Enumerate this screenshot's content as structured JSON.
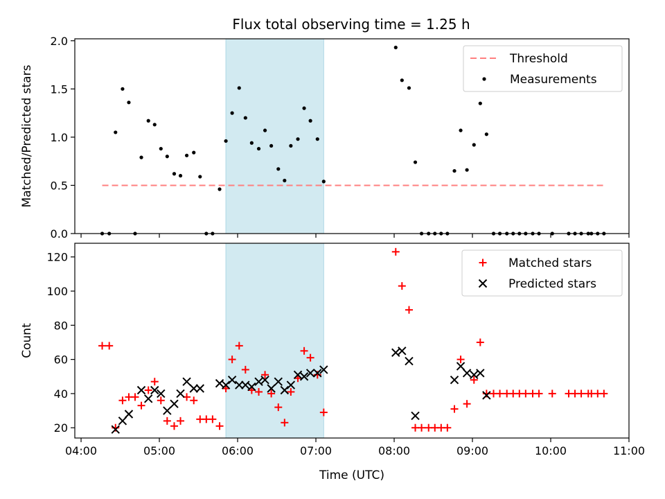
{
  "figure": {
    "title": "Flux total observing time = 1.25 h"
  },
  "colors": {
    "threshold": "#ff7f7f",
    "shade": "#add8e6",
    "measurement": "#000000",
    "matched": "#ff0000",
    "predicted": "#000000"
  },
  "chart_data": [
    {
      "type": "scatter",
      "ylabel": "Matched/Predicted stars",
      "xlim": [
        3.92,
        11.0
      ],
      "ylim": [
        0,
        2.02
      ],
      "yticks": [
        {
          "v": 0,
          "label": "0.0"
        },
        {
          "v": 0.5,
          "label": "0.5"
        },
        {
          "v": 1.0,
          "label": "1.0"
        },
        {
          "v": 1.5,
          "label": "1.5"
        },
        {
          "v": 2.0,
          "label": "2.0"
        }
      ],
      "legend": {
        "placement": "top-right",
        "entries": [
          "Threshold",
          "Measurements"
        ]
      },
      "threshold": {
        "name": "Threshold",
        "y": 0.5,
        "x_start": 4.27,
        "x_end": 10.68
      },
      "shaded_region": {
        "x_start": 5.85,
        "x_end": 7.1
      },
      "series": [
        {
          "name": "Measurements",
          "marker": "dot",
          "x": [
            4.27,
            4.36,
            4.44,
            4.53,
            4.61,
            4.69,
            4.77,
            4.86,
            4.94,
            5.02,
            5.1,
            5.19,
            5.27,
            5.35,
            5.44,
            5.52,
            5.6,
            5.68,
            5.77,
            5.85,
            5.93,
            6.02,
            6.1,
            6.18,
            6.27,
            6.35,
            6.43,
            6.52,
            6.6,
            6.68,
            6.77,
            6.85,
            6.93,
            7.02,
            7.1,
            8.02,
            8.1,
            8.19,
            8.27,
            8.35,
            8.44,
            8.52,
            8.6,
            8.68,
            8.77,
            8.85,
            8.93,
            9.02,
            9.1,
            9.18,
            9.27,
            9.35,
            9.44,
            9.52,
            9.6,
            9.68,
            9.77,
            9.85,
            10.02,
            10.23,
            10.31,
            10.39,
            10.48,
            10.52,
            10.6,
            10.68
          ],
          "y": [
            0,
            0,
            1.05,
            1.5,
            1.36,
            0,
            0.79,
            1.17,
            1.13,
            0.88,
            0.8,
            0.62,
            0.6,
            0.81,
            0.84,
            0.59,
            0,
            0,
            0.46,
            0.96,
            1.25,
            1.51,
            1.2,
            0.94,
            0.88,
            1.07,
            0.91,
            0.67,
            0.55,
            0.91,
            0.98,
            1.3,
            1.17,
            0.98,
            0.54,
            1.93,
            1.59,
            1.51,
            0.74,
            0,
            0,
            0,
            0,
            0,
            0.65,
            1.07,
            0.66,
            0.92,
            1.35,
            1.03,
            0,
            0,
            0,
            0,
            0,
            0,
            0,
            0,
            0,
            0,
            0,
            0,
            0,
            0,
            0,
            0
          ]
        }
      ]
    },
    {
      "type": "scatter",
      "ylabel": "Count",
      "xlabel": "Time (UTC)",
      "xlim": [
        3.92,
        11.0
      ],
      "ylim": [
        14,
        128
      ],
      "yticks": [
        {
          "v": 20,
          "label": "20"
        },
        {
          "v": 40,
          "label": "40"
        },
        {
          "v": 60,
          "label": "60"
        },
        {
          "v": 80,
          "label": "80"
        },
        {
          "v": 100,
          "label": "100"
        },
        {
          "v": 120,
          "label": "120"
        }
      ],
      "xticks": [
        {
          "v": 4,
          "label": "04:00"
        },
        {
          "v": 5,
          "label": "05:00"
        },
        {
          "v": 6,
          "label": "06:00"
        },
        {
          "v": 7,
          "label": "07:00"
        },
        {
          "v": 8,
          "label": "08:00"
        },
        {
          "v": 9,
          "label": "09:00"
        },
        {
          "v": 10,
          "label": "10:00"
        },
        {
          "v": 11,
          "label": "11:00"
        }
      ],
      "legend": {
        "placement": "top-right",
        "entries": [
          "Matched stars",
          "Predicted stars"
        ]
      },
      "shaded_region": {
        "x_start": 5.85,
        "x_end": 7.1
      },
      "series": [
        {
          "name": "Matched stars",
          "marker": "plus",
          "x": [
            4.27,
            4.36,
            4.44,
            4.53,
            4.61,
            4.69,
            4.77,
            4.86,
            4.94,
            5.02,
            5.1,
            5.19,
            5.27,
            5.35,
            5.44,
            5.52,
            5.6,
            5.68,
            5.77,
            5.85,
            5.93,
            6.02,
            6.1,
            6.18,
            6.27,
            6.35,
            6.43,
            6.52,
            6.6,
            6.68,
            6.77,
            6.85,
            6.93,
            7.02,
            7.1,
            8.02,
            8.1,
            8.19,
            8.27,
            8.35,
            8.44,
            8.52,
            8.6,
            8.68,
            8.77,
            8.85,
            8.93,
            9.02,
            9.1,
            9.18,
            9.27,
            9.35,
            9.44,
            9.52,
            9.6,
            9.68,
            9.77,
            9.85,
            10.02,
            10.23,
            10.31,
            10.39,
            10.48,
            10.52,
            10.6,
            10.68
          ],
          "y": [
            68,
            68,
            20,
            36,
            38,
            38,
            33,
            42,
            47,
            36,
            24,
            21,
            24,
            38,
            36,
            25,
            25,
            25,
            21,
            43,
            60,
            68,
            54,
            42,
            41,
            51,
            40,
            32,
            23,
            41,
            49,
            65,
            61,
            51,
            29,
            123,
            103,
            89,
            20,
            20,
            20,
            20,
            20,
            20,
            31,
            60,
            34,
            48,
            70,
            40,
            40,
            40,
            40,
            40,
            40,
            40,
            40,
            40,
            40,
            40,
            40,
            40,
            40,
            40,
            40,
            40
          ]
        },
        {
          "name": "Predicted stars",
          "marker": "x",
          "x": [
            4.44,
            4.53,
            4.61,
            4.77,
            4.86,
            4.94,
            5.02,
            5.1,
            5.19,
            5.27,
            5.35,
            5.44,
            5.52,
            5.77,
            5.85,
            5.93,
            6.02,
            6.1,
            6.18,
            6.27,
            6.35,
            6.43,
            6.52,
            6.6,
            6.68,
            6.77,
            6.85,
            6.93,
            7.02,
            7.1,
            8.02,
            8.1,
            8.19,
            8.27,
            8.77,
            8.85,
            8.93,
            9.02,
            9.1,
            9.18
          ],
          "y": [
            19,
            24,
            28,
            42,
            37,
            42,
            40,
            30,
            34,
            40,
            47,
            43,
            43,
            46,
            45,
            48,
            45,
            45,
            44,
            47,
            48,
            43,
            47,
            42,
            45,
            51,
            50,
            52,
            52,
            54,
            64,
            65,
            59,
            27,
            48,
            56,
            52,
            51,
            52,
            39
          ]
        }
      ]
    }
  ]
}
